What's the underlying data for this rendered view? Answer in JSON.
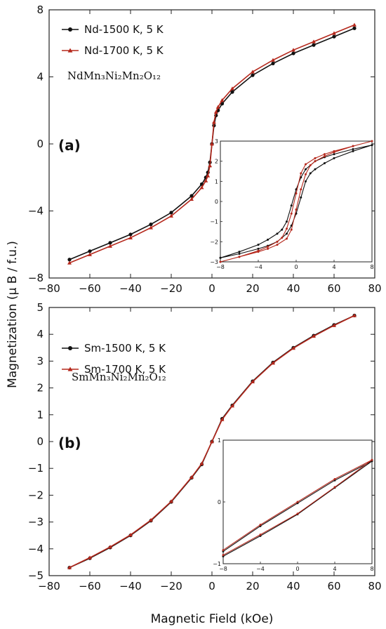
{
  "figure": {
    "y_axis_label": "Magnetization  (μ B / f.u.)",
    "x_axis_label": "Magnetic Field (kOe)"
  },
  "colors": {
    "series_1500": "#111111",
    "series_1700": "#b5281c"
  },
  "chart_data": [
    {
      "id": "a",
      "type": "line",
      "panel_label": "(a)",
      "compound": "NdMn3Ni2Mn2O12",
      "compound_display": "NdMn₃Ni₂Mn₂O₁₂",
      "xlim": [
        -80,
        80
      ],
      "ylim": [
        -8,
        8
      ],
      "x_ticks": [
        -80,
        -60,
        -40,
        -20,
        0,
        20,
        40,
        60,
        80
      ],
      "y_ticks": [
        -8,
        -4,
        0,
        4,
        8
      ],
      "legend_position": "top-left",
      "series": [
        {
          "name": "Nd-1500 K, 5 K",
          "color": "#111111",
          "marker": "circle",
          "x": [
            -70,
            -60,
            -50,
            -40,
            -30,
            -20,
            -10,
            -5,
            -3,
            -2,
            -1,
            0,
            1,
            2,
            3,
            5,
            10,
            20,
            30,
            40,
            50,
            60,
            70
          ],
          "y": [
            -6.9,
            -6.4,
            -5.9,
            -5.4,
            -4.8,
            -4.1,
            -3.1,
            -2.4,
            -2.0,
            -1.7,
            -1.1,
            0.0,
            1.1,
            1.7,
            2.0,
            2.4,
            3.1,
            4.1,
            4.8,
            5.4,
            5.9,
            6.4,
            6.9
          ]
        },
        {
          "name": "Nd-1700 K, 5 K",
          "color": "#b5281c",
          "marker": "triangle",
          "x": [
            -70,
            -60,
            -50,
            -40,
            -30,
            -20,
            -10,
            -5,
            -3,
            -2,
            -1,
            0,
            1,
            2,
            3,
            5,
            10,
            20,
            30,
            40,
            50,
            60,
            70
          ],
          "y": [
            -7.1,
            -6.6,
            -6.1,
            -5.6,
            -5.0,
            -4.3,
            -3.3,
            -2.6,
            -2.2,
            -1.9,
            -1.3,
            0.0,
            1.3,
            1.9,
            2.2,
            2.6,
            3.3,
            4.3,
            5.0,
            5.6,
            6.1,
            6.6,
            7.1
          ]
        }
      ],
      "inset": {
        "xlim": [
          -8,
          8
        ],
        "ylim": [
          -3,
          3
        ],
        "x_ticks": [
          -8,
          -4,
          0,
          4,
          8
        ],
        "y_ticks": [
          -3,
          -2,
          -1,
          0,
          1,
          2,
          3
        ],
        "series": [
          {
            "name": "Nd-1500 K, 5 K",
            "color": "#111111",
            "x": [
              -8,
              -6,
              -4,
              -3,
              -2,
              -1,
              -0.5,
              0,
              0.5,
              1,
              1.5,
              2,
              3,
              4,
              6,
              8,
              6,
              4,
              3,
              2,
              1,
              0.5,
              0,
              -0.5,
              -1,
              -1.5,
              -2,
              -3,
              -4,
              -6,
              -8
            ],
            "y": [
              -2.8,
              -2.6,
              -2.35,
              -2.2,
              -2.0,
              -1.6,
              -1.2,
              -0.6,
              0.2,
              1.0,
              1.4,
              1.6,
              1.9,
              2.15,
              2.5,
              2.8,
              2.6,
              2.35,
              2.2,
              2.0,
              1.6,
              1.2,
              0.6,
              -0.2,
              -1.0,
              -1.4,
              -1.6,
              -1.9,
              -2.15,
              -2.5,
              -2.8
            ]
          },
          {
            "name": "Nd-1700 K, 5 K",
            "color": "#b5281c",
            "x": [
              -8,
              -6,
              -4,
              -3,
              -2,
              -1,
              -0.5,
              0,
              0.5,
              1,
              1.5,
              2,
              3,
              4,
              6,
              8,
              6,
              4,
              3,
              2,
              1,
              0.5,
              0,
              -0.5,
              -1,
              -1.5,
              -2,
              -3,
              -4,
              -6,
              -8
            ],
            "y": [
              -3.0,
              -2.75,
              -2.5,
              -2.35,
              -2.15,
              -1.85,
              -1.4,
              -0.4,
              0.6,
              1.35,
              1.8,
              2.0,
              2.25,
              2.45,
              2.75,
              3.0,
              2.75,
              2.5,
              2.35,
              2.15,
              1.85,
              1.4,
              0.4,
              -0.6,
              -1.35,
              -1.8,
              -2.0,
              -2.25,
              -2.45,
              -2.75,
              -3.0
            ]
          }
        ]
      }
    },
    {
      "id": "b",
      "type": "line",
      "panel_label": "(b)",
      "compound": "SmMn3Ni2Mn2O12",
      "compound_display": "SmMn₃Ni₂Mn₂O₁₂",
      "xlim": [
        -80,
        80
      ],
      "ylim": [
        -5,
        5
      ],
      "x_ticks": [
        -80,
        -60,
        -40,
        -20,
        0,
        20,
        40,
        60,
        80
      ],
      "y_ticks": [
        -5,
        -4,
        -3,
        -2,
        -1,
        0,
        1,
        2,
        3,
        4,
        5
      ],
      "legend_position": "top-left",
      "series": [
        {
          "name": "Sm-1500 K, 5 K",
          "color": "#111111",
          "marker": "circle",
          "x": [
            -70,
            -60,
            -50,
            -40,
            -30,
            -20,
            -10,
            -5,
            0,
            5,
            10,
            20,
            30,
            40,
            50,
            60,
            70
          ],
          "y": [
            -4.7,
            -4.35,
            -3.95,
            -3.5,
            -2.95,
            -2.25,
            -1.35,
            -0.85,
            0.0,
            0.85,
            1.35,
            2.25,
            2.95,
            3.5,
            3.95,
            4.35,
            4.7
          ]
        },
        {
          "name": "Sm-1700 K, 5 K",
          "color": "#b5281c",
          "marker": "triangle",
          "x": [
            -70,
            -60,
            -50,
            -40,
            -30,
            -20,
            -10,
            -5,
            0,
            5,
            10,
            20,
            30,
            40,
            50,
            60,
            70
          ],
          "y": [
            -4.7,
            -4.33,
            -3.93,
            -3.48,
            -2.93,
            -2.23,
            -1.33,
            -0.82,
            0.0,
            0.82,
            1.33,
            2.23,
            2.93,
            3.48,
            3.93,
            4.33,
            4.7
          ]
        }
      ],
      "inset": {
        "xlim": [
          -8,
          8
        ],
        "ylim": [
          -1,
          1
        ],
        "x_ticks": [
          -8,
          -4,
          0,
          4,
          8
        ],
        "y_ticks": [
          -1,
          0,
          1
        ],
        "series": [
          {
            "name": "Sm-1500 K, 5 K",
            "color": "#111111",
            "x": [
              -8,
              -4,
              0,
              4,
              8,
              4,
              0,
              -4,
              -8
            ],
            "y": [
              -0.88,
              -0.55,
              -0.2,
              0.23,
              0.66,
              0.35,
              -0.02,
              -0.39,
              -0.8
            ]
          },
          {
            "name": "Sm-1700 K, 5 K",
            "color": "#b5281c",
            "x": [
              -8,
              -4,
              0,
              4,
              8,
              4,
              0,
              -4,
              -8
            ],
            "y": [
              -0.86,
              -0.53,
              -0.19,
              0.24,
              0.68,
              0.37,
              0.0,
              -0.37,
              -0.78
            ]
          }
        ]
      }
    }
  ]
}
